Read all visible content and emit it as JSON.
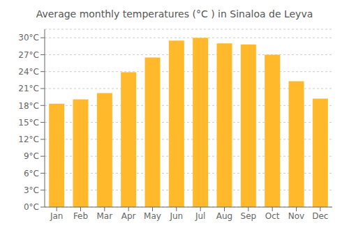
{
  "chart_data": {
    "type": "bar",
    "title": "Average monthly temperatures (°C ) in Sinaloa de Leyva",
    "categories": [
      "Jan",
      "Feb",
      "Mar",
      "Apr",
      "May",
      "Jun",
      "Jul",
      "Aug",
      "Sep",
      "Oct",
      "Nov",
      "Dec"
    ],
    "values": [
      18.3,
      19.1,
      20.2,
      23.9,
      26.5,
      29.5,
      30.0,
      29.0,
      28.8,
      27.0,
      22.3,
      19.2
    ],
    "color": "#FFB92A",
    "ylim": [
      0,
      31.5
    ],
    "yticks": [
      {
        "value": 0,
        "label": "0°C"
      },
      {
        "value": 3,
        "label": "3°C"
      },
      {
        "value": 6,
        "label": "6°C"
      },
      {
        "value": 9,
        "label": "9°C"
      },
      {
        "value": 12,
        "label": "12°C"
      },
      {
        "value": 15,
        "label": "15°C"
      },
      {
        "value": 18,
        "label": "18°C"
      },
      {
        "value": 21,
        "label": "21°C"
      },
      {
        "value": 24,
        "label": "24°C"
      },
      {
        "value": 27,
        "label": "27°C"
      },
      {
        "value": 30,
        "label": "30°C"
      }
    ],
    "grid": true
  }
}
